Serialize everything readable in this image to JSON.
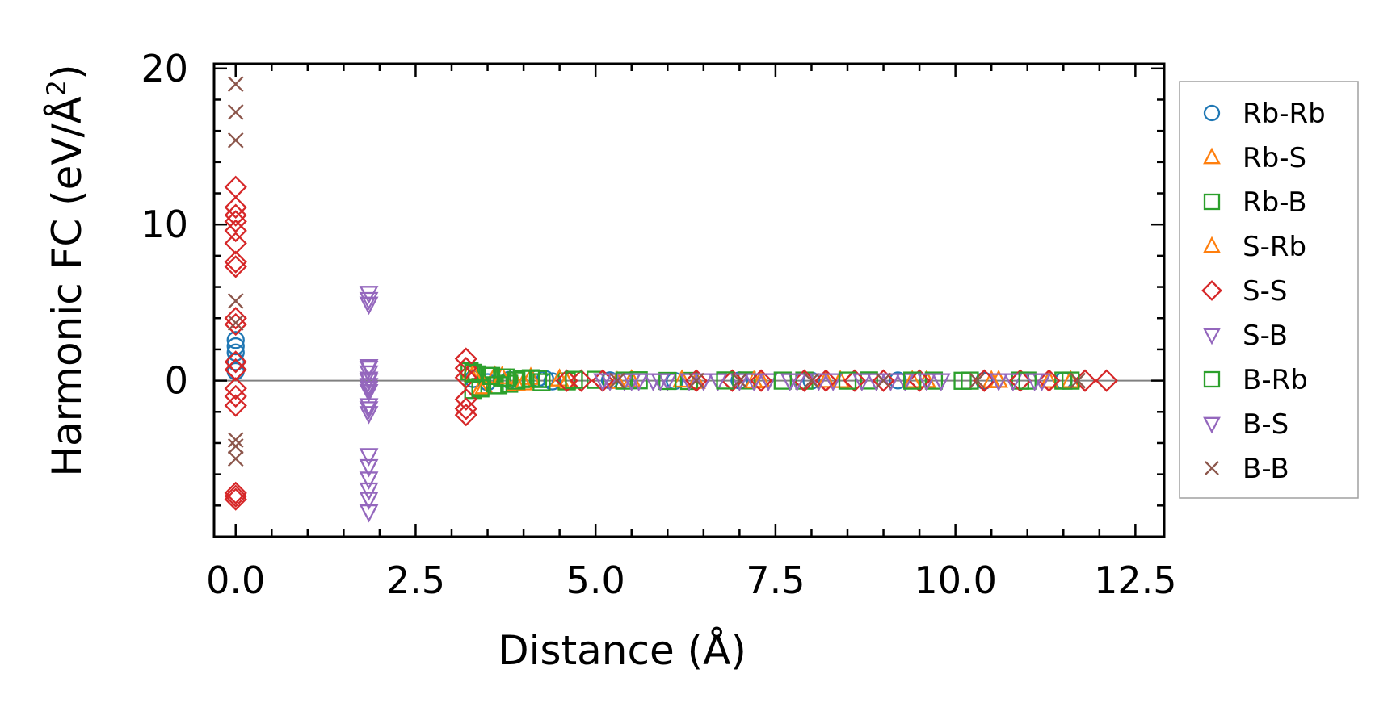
{
  "chart_data": {
    "type": "scatter",
    "title": "",
    "xlabel": "Distance (Å)",
    "ylabel": "Harmonic FC (eV/Å²)",
    "ylabel_main": "Harmonic FC (eV/Å",
    "ylabel_sup": "2",
    "ylabel_end": ")",
    "xlim": [
      -0.3,
      12.9
    ],
    "ylim": [
      -10,
      20.3
    ],
    "xticks": [
      0.0,
      2.5,
      5.0,
      7.5,
      10.0,
      12.5
    ],
    "xtick_labels": [
      "0.0",
      "2.5",
      "5.0",
      "7.5",
      "10.0",
      "12.5"
    ],
    "yticks": [
      0,
      10,
      20
    ],
    "ytick_labels": [
      "0",
      "10",
      "20"
    ],
    "zero_line": true,
    "grid": false,
    "legend_position": "right-outside",
    "series": [
      {
        "name": "Rb-Rb",
        "marker": "circle",
        "color": "#1f77b4",
        "x": [
          0,
          0,
          0,
          0,
          0,
          3.3,
          3.5,
          3.8,
          4.2,
          4.3,
          4.4,
          5.2,
          6.1,
          7.0,
          8.0,
          9.2,
          10.4,
          11.5
        ],
        "y": [
          2.6,
          2.2,
          1.8,
          1.2,
          0.6,
          0.1,
          -0.1,
          0.05,
          0.15,
          0.1,
          -0.05,
          0.02,
          -0.02,
          0.01,
          0,
          0.01,
          -0.01,
          0
        ]
      },
      {
        "name": "Rb-S",
        "marker": "triangle-up",
        "color": "#ff7f0e",
        "x": [
          3.25,
          3.4,
          3.6,
          3.9,
          4.1,
          4.6,
          5.5,
          6.4,
          7.3,
          8.4,
          9.6,
          10.5,
          11.3
        ],
        "y": [
          0.5,
          -0.5,
          0.3,
          -0.2,
          0.2,
          -0.1,
          0.05,
          -0.05,
          0.02,
          0,
          0.01,
          -0.01,
          0
        ]
      },
      {
        "name": "Rb-B",
        "marker": "square",
        "color": "#2ca02c",
        "x": [
          3.25,
          3.3,
          3.35,
          3.4,
          3.5,
          3.6,
          3.7,
          3.8,
          4.0,
          4.2,
          4.6,
          5.0,
          5.6,
          6.3,
          7.1,
          7.9,
          8.8,
          9.7,
          10.1,
          10.9,
          11.5
        ],
        "y": [
          0.6,
          -0.6,
          0.4,
          -0.4,
          0.3,
          -0.3,
          0.2,
          -0.2,
          0.1,
          0.1,
          -0.05,
          0.05,
          0.02,
          -0.02,
          0.01,
          0,
          0.01,
          0,
          -0.01,
          0,
          0
        ]
      },
      {
        "name": "S-Rb",
        "marker": "triangle-up",
        "color": "#ff7f0e",
        "x": [
          3.3,
          3.45,
          3.7,
          4.0,
          4.5,
          5.3,
          6.2,
          7.2,
          8.2,
          9.4,
          10.6,
          11.6
        ],
        "y": [
          0.4,
          -0.4,
          0.25,
          -0.15,
          0.1,
          -0.05,
          0.03,
          -0.02,
          0.01,
          0,
          0.01,
          0
        ]
      },
      {
        "name": "S-S",
        "marker": "diamond",
        "color": "#d62728",
        "x": [
          0,
          0,
          0,
          0,
          0,
          0,
          0,
          0,
          0,
          0,
          0,
          0,
          0,
          0,
          0,
          0,
          0,
          0,
          3.2,
          3.2,
          3.2,
          3.2,
          3.2,
          3.2,
          4.6,
          4.8,
          5.1,
          6.4,
          6.9,
          7.3,
          7.9,
          8.2,
          8.6,
          9.0,
          9.5,
          10.4,
          10.9,
          11.3,
          11.8,
          12.1
        ],
        "y": [
          12.4,
          11.1,
          10.6,
          10.2,
          9.6,
          8.8,
          7.6,
          7.3,
          4.0,
          3.6,
          1.2,
          0.7,
          -0.5,
          -1.0,
          -1.6,
          -7.2,
          -7.4,
          -7.6,
          1.4,
          0.8,
          0.2,
          -1.2,
          -1.8,
          -2.2,
          0,
          0,
          0,
          0,
          0,
          0,
          0,
          0,
          0,
          0,
          0,
          0,
          0,
          0,
          0,
          0
        ]
      },
      {
        "name": "S-B",
        "marker": "triangle-down",
        "color": "#9467bd",
        "x": [
          1.85,
          1.85,
          1.85,
          1.85,
          1.85,
          1.85,
          1.85,
          1.85,
          1.85,
          1.85,
          1.85,
          1.85,
          1.85,
          1.85,
          1.85,
          1.85,
          5.2,
          5.4,
          5.6,
          5.8,
          6.0,
          6.3,
          6.7,
          7.0,
          7.4,
          7.8,
          8.3,
          8.9,
          9.3,
          9.8,
          10.8,
          11.2
        ],
        "y": [
          5.6,
          5.2,
          4.9,
          0.9,
          0.5,
          0.1,
          -0.3,
          -0.7,
          -1.6,
          -2.1,
          -4.8,
          -5.5,
          -6.3,
          -7.0,
          -7.6,
          -8.4,
          0,
          0,
          0,
          0,
          0,
          0,
          0,
          0,
          0,
          0,
          0,
          0,
          0,
          0,
          0,
          0
        ]
      },
      {
        "name": "B-Rb",
        "marker": "square",
        "color": "#2ca02c",
        "x": [
          3.3,
          3.4,
          3.55,
          3.65,
          3.75,
          3.9,
          4.1,
          4.25,
          4.7,
          5.4,
          6.0,
          6.8,
          7.6,
          8.5,
          9.4,
          10.2,
          11.0,
          11.6
        ],
        "y": [
          0.5,
          -0.5,
          0.3,
          -0.3,
          0.2,
          0,
          0.15,
          -0.1,
          0.05,
          0,
          -0.02,
          0.01,
          0,
          0,
          0,
          0,
          0,
          0
        ]
      },
      {
        "name": "B-S",
        "marker": "triangle-down",
        "color": "#9467bd",
        "x": [
          1.85,
          1.85,
          1.85,
          1.85,
          5.1,
          5.5,
          5.9,
          6.5,
          7.2,
          7.7,
          8.1,
          8.7,
          9.1,
          9.6,
          10.6,
          11.1
        ],
        "y": [
          0.8,
          0.0,
          -0.5,
          -1.8,
          0,
          0,
          0,
          0,
          0,
          0,
          0,
          0,
          0,
          0,
          0,
          0
        ]
      },
      {
        "name": "B-B",
        "marker": "x",
        "color": "#8c564b",
        "x": [
          0,
          0,
          0,
          0,
          0,
          0,
          0,
          0,
          5.3,
          6.4,
          7.0,
          8.0,
          9.0,
          10.3,
          11.7
        ],
        "y": [
          19.0,
          17.2,
          15.4,
          5.1,
          3.7,
          -3.8,
          -4.2,
          -5.0,
          0,
          0,
          0,
          0,
          0,
          0,
          0
        ]
      }
    ]
  }
}
